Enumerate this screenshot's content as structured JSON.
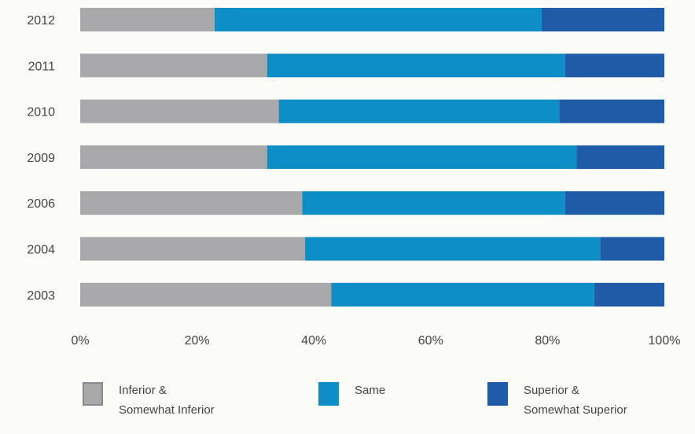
{
  "chart_data": {
    "type": "bar",
    "orientation": "horizontal",
    "stacked": true,
    "normalized": true,
    "categories": [
      "2012",
      "2011",
      "2010",
      "2009",
      "2006",
      "2004",
      "2003"
    ],
    "series": [
      {
        "name": "Inferior & Somewhat Inferior",
        "color": "#a8a8ab",
        "values": [
          23,
          32,
          34,
          32,
          38,
          38.5,
          43
        ]
      },
      {
        "name": "Same",
        "color": "#0e8ec7",
        "values": [
          56,
          51,
          48,
          53,
          45,
          50.5,
          45
        ]
      },
      {
        "name": "Superior & Somewhat Superior",
        "color": "#1f5ba7",
        "values": [
          21,
          17,
          18,
          15,
          17,
          11,
          12
        ]
      }
    ],
    "xlim": [
      0,
      100
    ],
    "xticks": [
      "0%",
      "20%",
      "40%",
      "60%",
      "80%",
      "100%"
    ],
    "grid": false,
    "legend_position": "bottom"
  },
  "legend": [
    {
      "label": "Inferior &\nSomewhat Inferior",
      "color": "#a8a8ab"
    },
    {
      "label": "Same",
      "color": "#0e8ec7"
    },
    {
      "label": "Superior &\nSomewhat Superior",
      "color": "#1f5ba7"
    }
  ]
}
